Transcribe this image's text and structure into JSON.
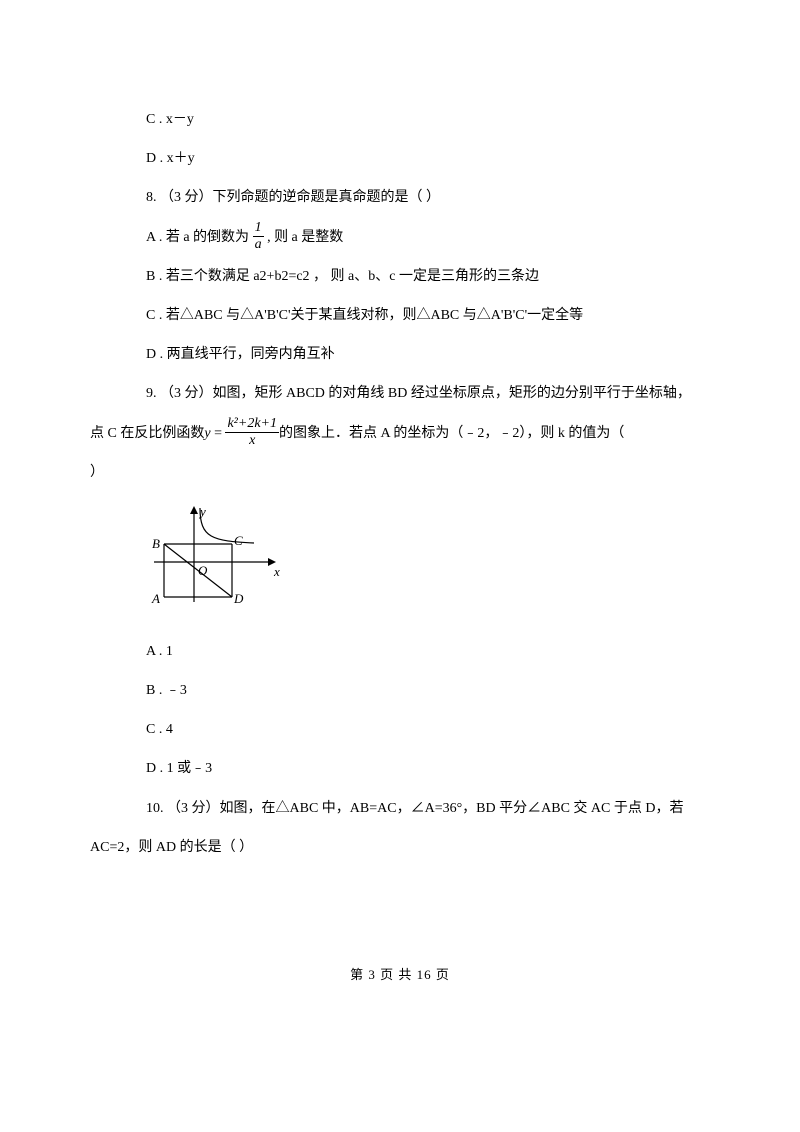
{
  "q7": {
    "optC": "C . x－y",
    "optD": "D . x＋y"
  },
  "q8": {
    "stem": "8. （3 分）下列命题的逆命题是真命题的是（    ）",
    "optA_pre": "A . 若 a 的倒数为 ",
    "optA_frac_num": "1",
    "optA_frac_den": "a",
    "optA_post": " ,  则 a 是整数",
    "optB": "B . 若三个数满足 a2+b2=c2 ，  则 a、b、c 一定是三角形的三条边",
    "optC": "C . 若△ABC 与△A'B'C'关于某直线对称，则△ABC 与△A'B'C'一定全等",
    "optD": "D . 两直线平行，同旁内角互补"
  },
  "q9": {
    "stem_line1": "9. （3 分）如图，矩形 ABCD 的对角线 BD 经过坐标原点，矩形的边分别平行于坐标轴，",
    "stem_line2_pre": "点 C 在反比例函数",
    "stem_line2_y": "y",
    "stem_line2_eq": " = ",
    "stem_line2_frac_num": "k²+2k+1",
    "stem_line2_frac_den": "x",
    "stem_line2_post": "的图象上．若点 A 的坐标为（﹣2，﹣2），则 k 的值为（",
    "stem_line3": "）",
    "diagram": {
      "width": 140,
      "height": 120,
      "stroke": "#000000",
      "labels": {
        "y": "y",
        "x": "x",
        "O": "O",
        "A": "A",
        "B": "B",
        "C": "C",
        "D": "D"
      }
    },
    "optA": "A . 1",
    "optB": "B . ﹣3",
    "optC": "C . 4",
    "optD": "D . 1 或﹣3"
  },
  "q10": {
    "stem_line1": "10.   （3 分）如图，在△ABC 中，AB=AC，∠A=36°，BD 平分∠ABC 交 AC 于点 D，若",
    "stem_line2": "AC=2，则 AD 的长是（    ）"
  },
  "footer": "第 3 页 共 16 页"
}
